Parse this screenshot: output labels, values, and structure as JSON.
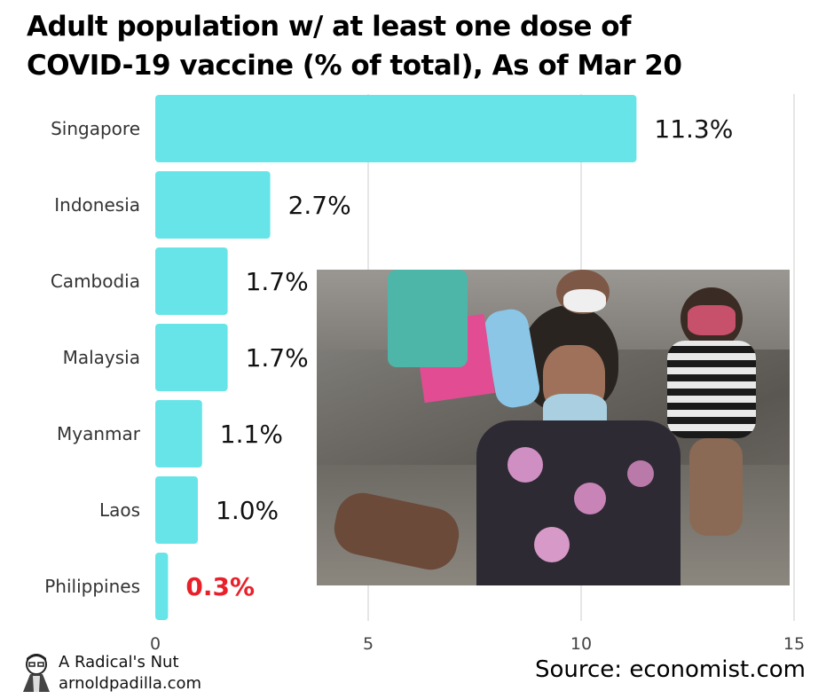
{
  "title_line1": "Adult population w/ at least one dose of",
  "title_line2": "COVID-19 vaccine (% of total), As of Mar 20",
  "colors": {
    "bar": "#67e4e8",
    "highlight": "#e8202a",
    "grid": "#cccccc"
  },
  "chart_data": {
    "type": "bar",
    "orientation": "horizontal",
    "title": "Adult population w/ at least one dose of COVID-19 vaccine (% of total), As of Mar 20",
    "categories": [
      "Singapore",
      "Indonesia",
      "Cambodia",
      "Malaysia",
      "Myanmar",
      "Laos",
      "Philippines"
    ],
    "values": [
      11.3,
      2.7,
      1.7,
      1.7,
      1.1,
      1.0,
      0.3
    ],
    "value_labels": [
      "11.3%",
      "2.7%",
      "1.7%",
      "1.7%",
      "1.1%",
      "1.0%",
      "0.3%"
    ],
    "highlight_category": "Philippines",
    "xlim": [
      0,
      15
    ],
    "xticks": [
      0,
      5,
      10,
      15
    ],
    "grid": true
  },
  "brand": {
    "name": "A Radical's Nut",
    "site": "arnoldpadilla.com",
    "avatar_icon": "cartoon-avatar-icon"
  },
  "source": "Source: economist.com",
  "photo_icon": "photo-masked-girl-image"
}
